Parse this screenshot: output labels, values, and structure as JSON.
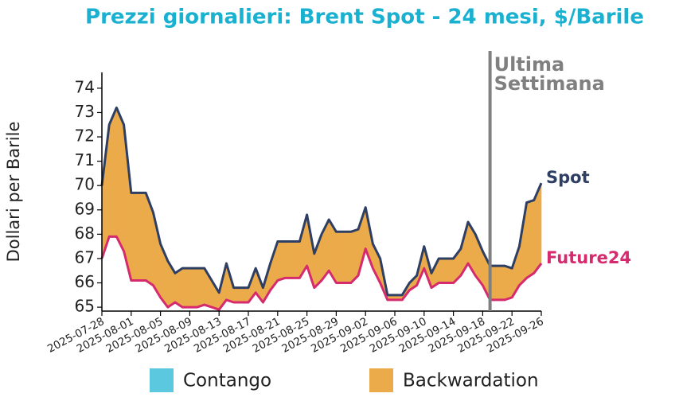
{
  "chart_data": {
    "type": "line",
    "title": "Prezzi giornalieri: Brent Spot - 24 mesi, $/Barile",
    "y_label": "Dollari per Barile",
    "x": [
      "2025-07-28",
      "2025-07-29",
      "2025-07-30",
      "2025-07-31",
      "2025-08-01",
      "2025-08-02",
      "2025-08-03",
      "2025-08-04",
      "2025-08-05",
      "2025-08-06",
      "2025-08-07",
      "2025-08-08",
      "2025-08-09",
      "2025-08-10",
      "2025-08-11",
      "2025-08-12",
      "2025-08-13",
      "2025-08-14",
      "2025-08-15",
      "2025-08-16",
      "2025-08-17",
      "2025-08-18",
      "2025-08-19",
      "2025-08-20",
      "2025-08-21",
      "2025-08-22",
      "2025-08-23",
      "2025-08-24",
      "2025-08-25",
      "2025-08-26",
      "2025-08-27",
      "2025-08-28",
      "2025-08-29",
      "2025-08-30",
      "2025-08-31",
      "2025-09-01",
      "2025-09-02",
      "2025-09-03",
      "2025-09-04",
      "2025-09-05",
      "2025-09-06",
      "2025-09-07",
      "2025-09-08",
      "2025-09-09",
      "2025-09-10",
      "2025-09-11",
      "2025-09-12",
      "2025-09-13",
      "2025-09-14",
      "2025-09-15",
      "2025-09-16",
      "2025-09-17",
      "2025-09-18",
      "2025-09-19",
      "2025-09-20",
      "2025-09-21",
      "2025-09-22",
      "2025-09-23",
      "2025-09-24",
      "2025-09-25",
      "2025-09-26"
    ],
    "series": [
      {
        "name": "Spot",
        "color": "#2e3f63",
        "values": [
          70.0,
          72.5,
          73.2,
          72.5,
          69.7,
          69.7,
          69.7,
          68.9,
          67.6,
          66.9,
          66.4,
          66.6,
          66.6,
          66.6,
          66.6,
          66.1,
          65.6,
          66.8,
          65.8,
          65.8,
          65.8,
          66.6,
          65.8,
          66.8,
          67.7,
          67.7,
          67.7,
          67.7,
          68.8,
          67.2,
          68.0,
          68.6,
          68.1,
          68.1,
          68.1,
          68.2,
          69.1,
          67.6,
          67.0,
          65.5,
          65.5,
          65.5,
          66.0,
          66.3,
          67.5,
          66.4,
          67.0,
          67.0,
          67.0,
          67.4,
          68.5,
          68.0,
          67.3,
          66.7,
          66.7,
          66.7,
          66.6,
          67.5,
          69.3,
          69.4,
          70.1
        ]
      },
      {
        "name": "Future24",
        "color": "#d62a6e",
        "values": [
          67.0,
          67.9,
          67.9,
          67.3,
          66.1,
          66.1,
          66.1,
          65.9,
          65.4,
          65.0,
          65.2,
          65.0,
          65.0,
          65.0,
          65.1,
          65.0,
          64.9,
          65.3,
          65.2,
          65.2,
          65.2,
          65.6,
          65.2,
          65.7,
          66.1,
          66.2,
          66.2,
          66.2,
          66.7,
          65.8,
          66.1,
          66.5,
          66.0,
          66.0,
          66.0,
          66.3,
          67.4,
          66.6,
          66.0,
          65.3,
          65.3,
          65.3,
          65.7,
          65.9,
          66.6,
          65.8,
          66.0,
          66.0,
          66.0,
          66.3,
          66.8,
          66.3,
          65.9,
          65.3,
          65.3,
          65.3,
          65.4,
          65.9,
          66.2,
          66.4,
          66.8
        ]
      }
    ],
    "fill_legend": [
      {
        "name": "Contango",
        "color": "#5bc8e0"
      },
      {
        "name": "Backwardation",
        "color": "#ebab4a"
      }
    ],
    "annotation": {
      "x": "2025-09-19",
      "lines": [
        "Ultima",
        "Settimana"
      ],
      "color": "#808080"
    },
    "xlim": [
      "2025-07-28",
      "2025-09-26"
    ],
    "xticks": [
      "2025-07-28",
      "2025-08-01",
      "2025-08-05",
      "2025-08-09",
      "2025-08-13",
      "2025-08-17",
      "2025-08-21",
      "2025-08-25",
      "2025-08-29",
      "2025-09-02",
      "2025-09-06",
      "2025-09-10",
      "2025-09-14",
      "2025-09-18",
      "2025-09-22",
      "2025-09-26"
    ],
    "ylim": [
      64.84,
      74.65
    ],
    "yticks": [
      65,
      66,
      67,
      68,
      69,
      70,
      71,
      72,
      73,
      74
    ],
    "title_color": "#1ab0d0"
  }
}
